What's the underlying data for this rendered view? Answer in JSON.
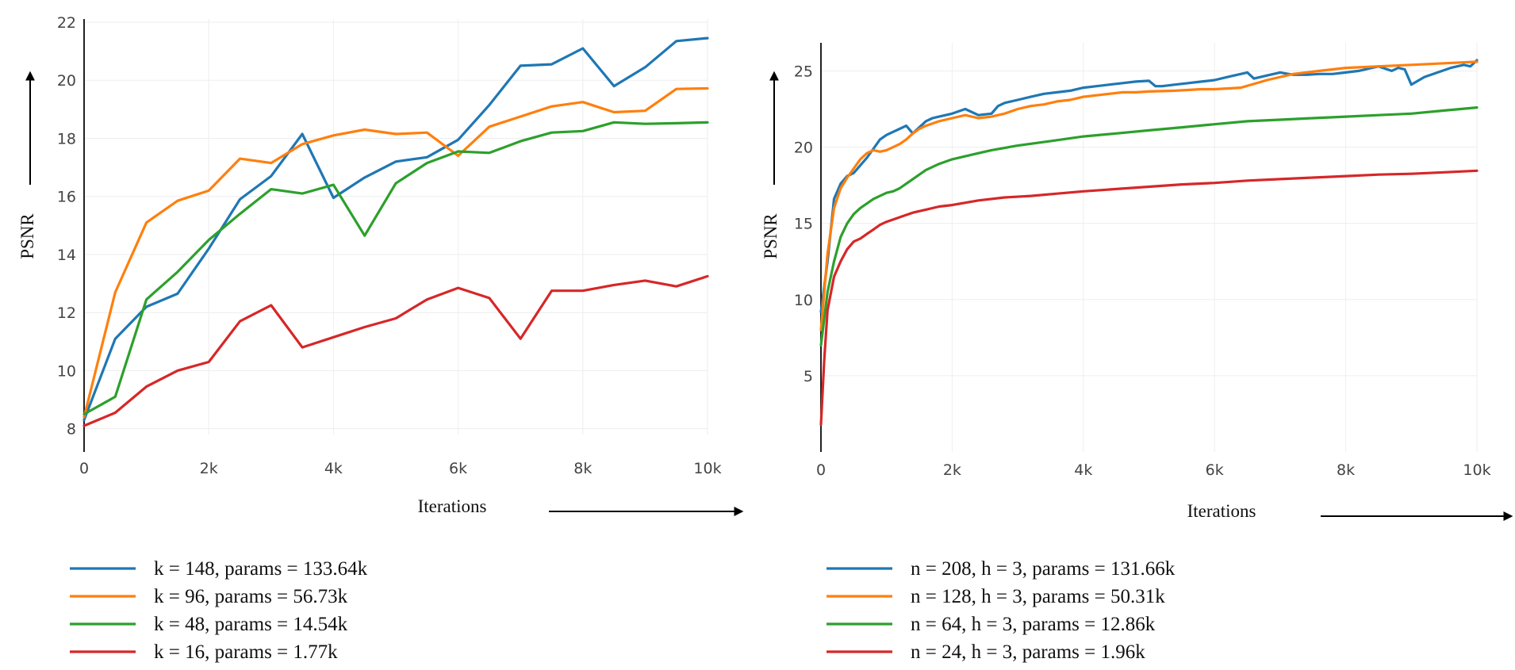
{
  "chart_data": [
    {
      "type": "line",
      "xlabel": "Iterations",
      "ylabel": "PSNR",
      "xlim": [
        0,
        10000
      ],
      "ylim": [
        7.8,
        22
      ],
      "xticks": [
        0,
        2000,
        4000,
        6000,
        8000,
        10000
      ],
      "xtick_labels": [
        "0",
        "2k",
        "4k",
        "6k",
        "8k",
        "10k"
      ],
      "yticks": [
        8,
        10,
        12,
        14,
        16,
        18,
        20,
        22
      ],
      "ytick_labels": [
        "8",
        "10",
        "12",
        "14",
        "16",
        "18",
        "20",
        "22"
      ],
      "grid": true,
      "legend_position": "bottom-left",
      "series": [
        {
          "name": "k = 148, params = 133.64k",
          "color": "#1f77b4",
          "x": [
            0,
            500,
            1000,
            1500,
            2000,
            2500,
            3000,
            3500,
            4000,
            4500,
            5000,
            5500,
            6000,
            6500,
            7000,
            7500,
            8000,
            8500,
            9000,
            9500,
            10000
          ],
          "y": [
            8.3,
            11.1,
            12.2,
            12.65,
            14.2,
            15.9,
            16.7,
            18.15,
            15.95,
            16.65,
            17.2,
            17.35,
            17.95,
            19.15,
            20.5,
            20.55,
            21.1,
            19.8,
            20.45,
            21.35,
            21.45
          ]
        },
        {
          "name": "k = 96, params = 56.73k",
          "color": "#ff7f0e",
          "x": [
            0,
            500,
            1000,
            1500,
            2000,
            2500,
            3000,
            3500,
            4000,
            4500,
            5000,
            5500,
            6000,
            6500,
            7000,
            7500,
            8000,
            8500,
            9000,
            9500,
            10000
          ],
          "y": [
            8.4,
            12.7,
            15.1,
            15.85,
            16.2,
            17.3,
            17.15,
            17.8,
            18.1,
            18.3,
            18.15,
            18.2,
            17.4,
            18.4,
            18.75,
            19.1,
            19.25,
            18.9,
            18.95,
            19.7,
            19.72
          ]
        },
        {
          "name": "k = 48, params = 14.54k",
          "color": "#2ca02c",
          "x": [
            0,
            500,
            1000,
            1500,
            2000,
            2500,
            3000,
            3500,
            4000,
            4500,
            5000,
            5500,
            6000,
            6500,
            7000,
            7500,
            8000,
            8500,
            9000,
            9500,
            10000
          ],
          "y": [
            8.5,
            9.1,
            12.45,
            13.4,
            14.5,
            15.4,
            16.25,
            16.1,
            16.4,
            14.65,
            16.45,
            17.15,
            17.55,
            17.5,
            17.9,
            18.2,
            18.25,
            18.55,
            18.5,
            18.52,
            18.55
          ]
        },
        {
          "name": "k = 16, params = 1.77k",
          "color": "#d62728",
          "x": [
            0,
            500,
            1000,
            1500,
            2000,
            2500,
            3000,
            3500,
            4000,
            4500,
            5000,
            5500,
            6000,
            6500,
            7000,
            7500,
            8000,
            8500,
            9000,
            9500,
            10000
          ],
          "y": [
            8.1,
            8.55,
            9.45,
            10.0,
            10.3,
            11.7,
            12.25,
            10.8,
            11.15,
            11.5,
            11.8,
            12.45,
            12.85,
            12.5,
            11.1,
            12.75,
            12.75,
            12.95,
            13.1,
            12.9,
            13.25
          ]
        }
      ]
    },
    {
      "type": "line",
      "xlabel": "Iterations",
      "ylabel": "PSNR",
      "xlim": [
        0,
        10000
      ],
      "ylim": [
        0,
        27
      ],
      "xticks": [
        0,
        2000,
        4000,
        6000,
        8000,
        10000
      ],
      "xtick_labels": [
        "0",
        "2k",
        "4k",
        "6k",
        "8k",
        "10k"
      ],
      "yticks": [
        5,
        10,
        15,
        20,
        25
      ],
      "ytick_labels": [
        "5",
        "10",
        "15",
        "20",
        "25"
      ],
      "grid": true,
      "legend_position": "bottom-left",
      "series": [
        {
          "name": "n = 208, h = 3, params = 131.66k",
          "color": "#1f77b4",
          "x": [
            0,
            100,
            200,
            300,
            400,
            500,
            600,
            700,
            800,
            900,
            1000,
            1100,
            1200,
            1300,
            1400,
            1500,
            1600,
            1700,
            1800,
            1900,
            2000,
            2200,
            2400,
            2600,
            2700,
            2800,
            3000,
            3200,
            3400,
            3600,
            3800,
            4000,
            4200,
            4400,
            4600,
            4800,
            5000,
            5100,
            5200,
            5400,
            5600,
            5800,
            6000,
            6200,
            6400,
            6500,
            6600,
            6800,
            7000,
            7200,
            7400,
            7600,
            7800,
            8000,
            8200,
            8400,
            8500,
            8700,
            8800,
            8900,
            9000,
            9200,
            9400,
            9600,
            9800,
            9900,
            10000
          ],
          "y": [
            9.2,
            12.5,
            16.6,
            17.6,
            18.1,
            18.3,
            18.8,
            19.3,
            19.9,
            20.5,
            20.8,
            21.0,
            21.2,
            21.4,
            20.9,
            21.3,
            21.7,
            21.9,
            22.0,
            22.1,
            22.2,
            22.5,
            22.1,
            22.2,
            22.7,
            22.9,
            23.1,
            23.3,
            23.5,
            23.6,
            23.7,
            23.9,
            24.0,
            24.1,
            24.2,
            24.3,
            24.35,
            24.0,
            24.0,
            24.1,
            24.2,
            24.3,
            24.4,
            24.6,
            24.8,
            24.9,
            24.5,
            24.7,
            24.9,
            24.75,
            24.75,
            24.8,
            24.8,
            24.9,
            25.0,
            25.2,
            25.3,
            25.0,
            25.2,
            25.1,
            24.1,
            24.6,
            24.9,
            25.2,
            25.4,
            25.3,
            25.7
          ]
        },
        {
          "name": "n = 128, h = 3, params = 50.31k",
          "color": "#ff7f0e",
          "x": [
            0,
            100,
            200,
            300,
            400,
            500,
            600,
            700,
            800,
            900,
            1000,
            1100,
            1200,
            1300,
            1400,
            1500,
            1600,
            1800,
            2000,
            2200,
            2400,
            2600,
            2800,
            3000,
            3200,
            3400,
            3600,
            3800,
            4000,
            4200,
            4400,
            4600,
            4800,
            5000,
            5400,
            5800,
            6000,
            6400,
            6800,
            7200,
            7600,
            8000,
            8500,
            9000,
            9500,
            10000
          ],
          "y": [
            8.0,
            13.0,
            16.0,
            17.3,
            18.0,
            18.6,
            19.2,
            19.6,
            19.8,
            19.7,
            19.8,
            20.0,
            20.2,
            20.5,
            20.9,
            21.2,
            21.4,
            21.7,
            21.9,
            22.1,
            21.9,
            22.0,
            22.2,
            22.5,
            22.7,
            22.8,
            23.0,
            23.1,
            23.3,
            23.4,
            23.5,
            23.6,
            23.6,
            23.65,
            23.7,
            23.8,
            23.8,
            23.9,
            24.4,
            24.8,
            25.0,
            25.2,
            25.3,
            25.4,
            25.5,
            25.6
          ]
        },
        {
          "name": "n = 64, h = 3, params = 12.86k",
          "color": "#2ca02c",
          "x": [
            0,
            100,
            200,
            300,
            400,
            500,
            600,
            700,
            800,
            900,
            1000,
            1100,
            1200,
            1300,
            1400,
            1500,
            1600,
            1800,
            2000,
            2200,
            2400,
            2600,
            3000,
            3500,
            4000,
            4500,
            5000,
            5500,
            6000,
            6500,
            7000,
            7500,
            8000,
            8500,
            9000,
            9500,
            10000
          ],
          "y": [
            7.0,
            10.5,
            12.5,
            14.1,
            15.0,
            15.6,
            16.0,
            16.3,
            16.6,
            16.8,
            17.0,
            17.1,
            17.3,
            17.6,
            17.9,
            18.2,
            18.5,
            18.9,
            19.2,
            19.4,
            19.6,
            19.8,
            20.1,
            20.4,
            20.7,
            20.9,
            21.1,
            21.3,
            21.5,
            21.7,
            21.8,
            21.9,
            22.0,
            22.1,
            22.2,
            22.4,
            22.6
          ]
        },
        {
          "name": "n = 24, h = 3, params = 1.96k",
          "color": "#d62728",
          "x": [
            0,
            50,
            100,
            200,
            300,
            400,
            500,
            600,
            700,
            800,
            900,
            1000,
            1200,
            1400,
            1600,
            1800,
            2000,
            2400,
            2800,
            3200,
            3600,
            4000,
            4500,
            5000,
            5500,
            6000,
            6500,
            7000,
            7500,
            8000,
            8500,
            9000,
            9500,
            10000
          ],
          "y": [
            1.8,
            6.0,
            9.3,
            11.5,
            12.5,
            13.3,
            13.8,
            14.0,
            14.3,
            14.6,
            14.9,
            15.1,
            15.4,
            15.7,
            15.9,
            16.1,
            16.2,
            16.5,
            16.7,
            16.8,
            16.95,
            17.1,
            17.25,
            17.4,
            17.55,
            17.65,
            17.8,
            17.9,
            18.0,
            18.1,
            18.2,
            18.25,
            18.35,
            18.45
          ]
        }
      ]
    }
  ]
}
